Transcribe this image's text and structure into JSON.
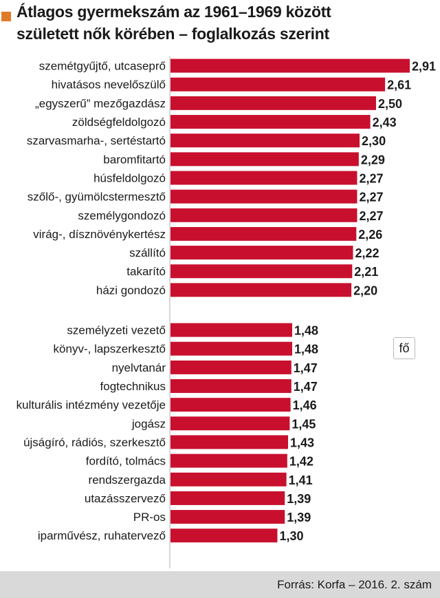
{
  "title_lines": [
    "Átlagos gyermekszám az 1961–1969 között",
    "született nők körében – foglalkozás szerint"
  ],
  "unit": "fő",
  "source": "Forrás: Korfa – 2016. 2. szám",
  "accent": "#e07b2a",
  "bar_color": "#c8102e",
  "chart_data": {
    "type": "bar",
    "orientation": "horizontal",
    "title": "Átlagos gyermekszám az 1961–1969 között született nők körében – foglalkozás szerint",
    "xlabel": "",
    "ylabel": "",
    "unit": "fő",
    "xlim": [
      0,
      2.91
    ],
    "grid": false,
    "decimal_separator": ",",
    "groups": [
      {
        "categories": [
          "szemétgyűjtő, utcaseprő",
          "hivatásos nevelőszülő",
          "„egyszerű” mezőgazdász",
          "zöldségfeldolgozó",
          "szarvasmarha-, sertéstartó",
          "baromfitartó",
          "húsfeldolgozó",
          "szőlő-, gyümölcstermesztő",
          "személygondozó",
          "virág-, dísznövénykertész",
          "szállító",
          "takarító",
          "házi gondozó"
        ],
        "values": [
          2.91,
          2.61,
          2.5,
          2.43,
          2.3,
          2.29,
          2.27,
          2.27,
          2.27,
          2.26,
          2.22,
          2.21,
          2.2
        ]
      },
      {
        "categories": [
          "személyzeti vezető",
          "könyv-, lapszerkesztő",
          "nyelvtanár",
          "fogtechnikus",
          "kulturális intézmény vezetője",
          "jogász",
          "újságíró, rádiós, szerkesztő",
          "fordító, tolmács",
          "rendszergazda",
          "utazásszervező",
          "PR-os",
          "iparművész, ruhatervező"
        ],
        "values": [
          1.48,
          1.48,
          1.47,
          1.47,
          1.46,
          1.45,
          1.43,
          1.42,
          1.41,
          1.39,
          1.39,
          1.3
        ]
      }
    ]
  }
}
